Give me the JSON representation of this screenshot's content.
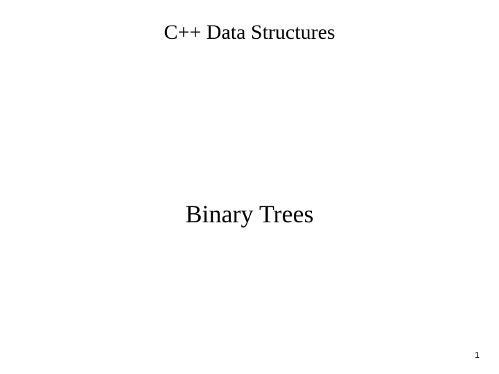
{
  "slide": {
    "title": "C++ Data Structures",
    "subtitle": "Binary Trees",
    "page_number": "1",
    "background_color": "#ffffff",
    "text_color": "#000000",
    "title_fontsize": 30,
    "subtitle_fontsize": 36,
    "page_number_fontsize": 13,
    "font_family": "Times New Roman"
  }
}
